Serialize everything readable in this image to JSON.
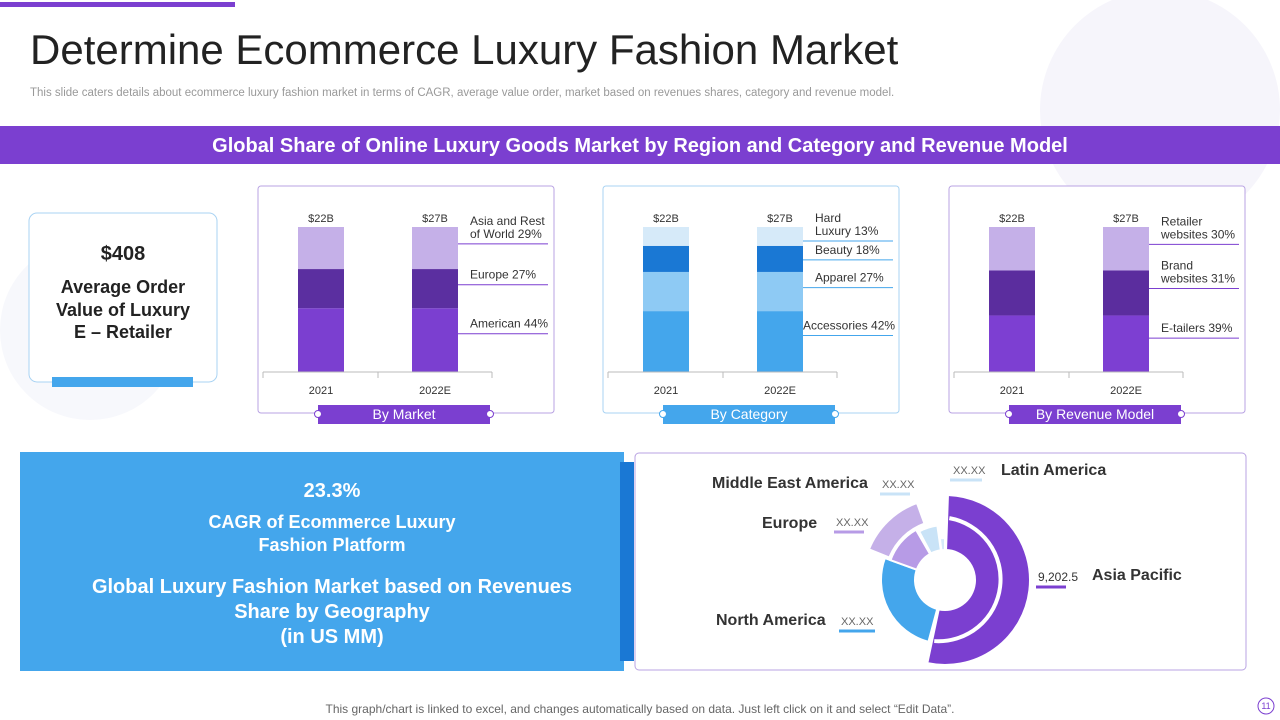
{
  "header": {
    "title": "Determine Ecommerce Luxury Fashion Market",
    "subtitle": "This slide caters details about ecommerce luxury fashion market in terms of CAGR, average value order, market based on revenues shares, category and revenue model."
  },
  "banner": "Global Share of Online Luxury Goods Market by Region and Category and Revenue Model",
  "kpi": {
    "value": "$408",
    "label": [
      "Average Order",
      "Value of Luxury",
      "E – Retailer"
    ]
  },
  "panels": [
    {
      "caption": "By Market",
      "years": [
        "2021",
        "2022E"
      ],
      "totals": [
        "$22B",
        "$27B"
      ],
      "segments": [
        {
          "label": [
            "Asia and Rest",
            "of World 29%"
          ],
          "share": 29,
          "color": "#c5b0e8"
        },
        {
          "label": [
            "Europe 27%"
          ],
          "share": 27,
          "color": "#5b2fa0"
        },
        {
          "label": [
            "American 44%"
          ],
          "share": 44,
          "color": "#7b3fd0"
        }
      ]
    },
    {
      "caption": "By Category",
      "years": [
        "2021",
        "2022E"
      ],
      "totals": [
        "$22B",
        "$27B"
      ],
      "segments": [
        {
          "label": [
            "Hard",
            "Luxury 13%"
          ],
          "share": 13,
          "color": "#d6eaf9"
        },
        {
          "label": [
            "Beauty 18%"
          ],
          "share": 18,
          "color": "#1a78d4"
        },
        {
          "label": [
            "Apparel 27%"
          ],
          "share": 27,
          "color": "#8ecaf4"
        },
        {
          "label": [
            "Accessories 42%"
          ],
          "share": 42,
          "color": "#44a6ec"
        }
      ]
    },
    {
      "caption": "By Revenue Model",
      "years": [
        "2021",
        "2022E"
      ],
      "totals": [
        "$22B",
        "$27B"
      ],
      "segments": [
        {
          "label": [
            "Retailer",
            "websites 30%"
          ],
          "share": 30,
          "color": "#c5b0e8"
        },
        {
          "label": [
            "Brand",
            "websites 31%"
          ],
          "share": 31,
          "color": "#5b2d9e"
        },
        {
          "label": [
            "E-tailers 39%"
          ],
          "share": 39,
          "color": "#7d3fd2"
        }
      ]
    }
  ],
  "cagr": {
    "value": "23.3%",
    "label": [
      "CAGR of Ecommerce Luxury",
      "Fashion Platform"
    ]
  },
  "geo_title": [
    "Global Luxury Fashion Market based on Revenues",
    "Share by Geography",
    "(in US MM)"
  ],
  "donut_labels": [
    {
      "region": "Latin America",
      "value": "XX.XX"
    },
    {
      "region": "Middle East America",
      "value": "XX.XX"
    },
    {
      "region": "Europe",
      "value": "XX.XX"
    },
    {
      "region": "Asia Pacific",
      "value": "9,202.5"
    },
    {
      "region": "North America",
      "value": "XX.XX"
    }
  ],
  "footer": "This graph/chart is linked to excel, and changes automatically based on data. Just left click on it and select “Edit Data”.",
  "page": "11"
}
